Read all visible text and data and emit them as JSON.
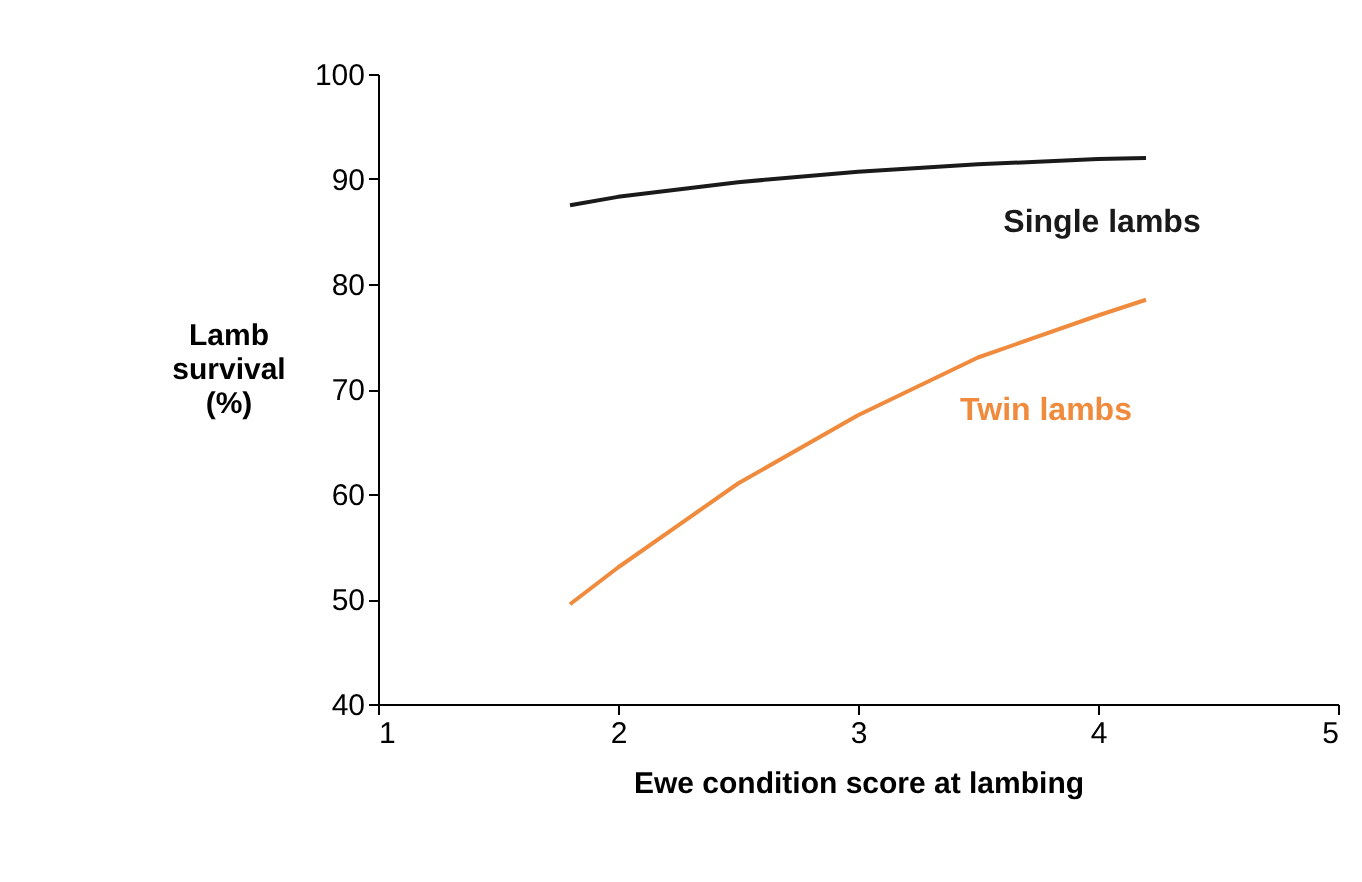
{
  "chart_data": {
    "type": "line",
    "xlabel": "Ewe condition score at lambing",
    "ylabel": "Lamb survival (%)",
    "xlim": [
      1,
      5
    ],
    "xticks": [
      1,
      2,
      3,
      4,
      5
    ],
    "ylim": [
      40,
      100
    ],
    "yticks": [
      40,
      50,
      60,
      70,
      80,
      90,
      100
    ],
    "grid": false,
    "legend": false,
    "marker": "none",
    "line_style": "solid",
    "series": [
      {
        "name": "Single lambs",
        "color": "#1a1a1a",
        "x": [
          1.8,
          2,
          2.5,
          3,
          3.5,
          4,
          4.2
        ],
        "values": [
          87.5,
          88.3,
          89.7,
          90.7,
          91.4,
          91.9,
          92
        ]
      },
      {
        "name": "Twin lambs",
        "color": "#f08a3c",
        "x": [
          1.8,
          2,
          2.5,
          3,
          3.5,
          4,
          4.2
        ],
        "values": [
          49.5,
          53,
          61,
          67.5,
          73,
          77,
          78.5
        ]
      }
    ]
  }
}
